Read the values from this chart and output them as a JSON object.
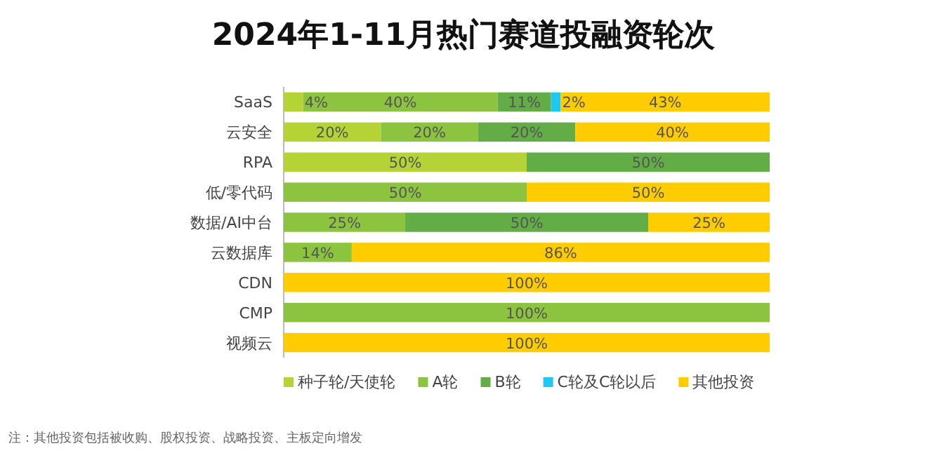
{
  "chart_data": {
    "type": "bar",
    "orientation": "horizontal",
    "stacked": true,
    "title": "2024年1-11月热门赛道投融资轮次",
    "categories": [
      "SaaS",
      "云安全",
      "RPA",
      "低/零代码",
      "数据/AI中台",
      "云数据库",
      "CDN",
      "CMP",
      "视频云"
    ],
    "series": [
      {
        "name": "种子轮/天使轮",
        "color": "#b5d334",
        "values": [
          4,
          20,
          50,
          null,
          null,
          null,
          null,
          null,
          null
        ],
        "value_labels": [
          "4%",
          "20%",
          "50%",
          null,
          null,
          null,
          null,
          null,
          null
        ]
      },
      {
        "name": "A轮",
        "color": "#8cc43f",
        "values": [
          40,
          20,
          null,
          50,
          25,
          14,
          null,
          100,
          null
        ],
        "value_labels": [
          "40%",
          "20%",
          null,
          "50%",
          "25%",
          "14%",
          null,
          "100%",
          null
        ]
      },
      {
        "name": "B轮",
        "color": "#62ad45",
        "values": [
          11,
          20,
          50,
          null,
          50,
          null,
          null,
          null,
          null
        ],
        "value_labels": [
          "11%",
          "20%",
          "50%",
          null,
          "50%",
          null,
          null,
          null,
          null
        ]
      },
      {
        "name": "C轮及C轮以后",
        "color": "#1ec8f0",
        "values": [
          2,
          null,
          null,
          null,
          null,
          null,
          null,
          null,
          null
        ],
        "value_labels": [
          "2%",
          null,
          null,
          null,
          null,
          null,
          null,
          null,
          null
        ]
      },
      {
        "name": "其他投资",
        "color": "#ffcc00",
        "values": [
          43,
          40,
          null,
          50,
          25,
          86,
          100,
          null,
          100
        ],
        "value_labels": [
          "43%",
          "40%",
          null,
          "50%",
          "25%",
          "86%",
          "100%",
          null,
          "100%"
        ]
      }
    ],
    "data_labels": true,
    "legend": "bottom",
    "annotations": [
      "注：其他投资包括被收购、股权投资、战略投资、主板定向增发"
    ]
  }
}
